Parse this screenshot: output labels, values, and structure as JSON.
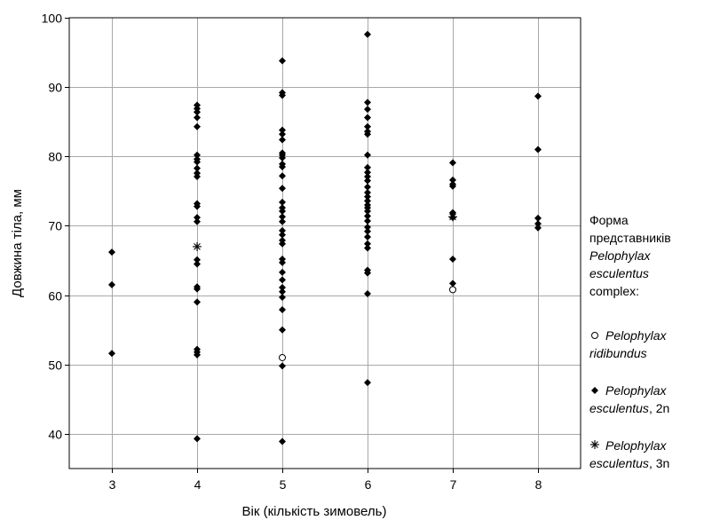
{
  "chart_data": {
    "type": "scatter",
    "title": "",
    "xlabel": "Вік (кількість зимовель)",
    "ylabel": "Довжина тіла, мм",
    "xlim": [
      2.5,
      8.5
    ],
    "ylim": [
      35,
      100
    ],
    "xticks": [
      3,
      4,
      5,
      6,
      7,
      8
    ],
    "yticks": [
      40,
      50,
      60,
      70,
      80,
      90,
      100
    ],
    "grid": true,
    "legend_position": "right",
    "legend_title": [
      "Форма",
      "представників",
      "Pelophylax",
      "esculentus",
      "complex:"
    ],
    "series": [
      {
        "name": "Pelophylax ridibundus",
        "name_italic": "Pelophylax",
        "name_rest": "ridibundus",
        "marker": "open-circle",
        "points": [
          [
            5,
            51.0
          ],
          [
            7,
            60.8
          ]
        ]
      },
      {
        "name": "Pelophylax esculentus, 2n",
        "name_italic": "Pelophylax",
        "name_rest": "esculentus, 2n",
        "marker": "filled-diamond",
        "points": [
          [
            3,
            66.2
          ],
          [
            3,
            61.5
          ],
          [
            3,
            51.6
          ],
          [
            4,
            87.4
          ],
          [
            4,
            86.9
          ],
          [
            4,
            86.4
          ],
          [
            4,
            85.6
          ],
          [
            4,
            84.3
          ],
          [
            4,
            80.2
          ],
          [
            4,
            79.6
          ],
          [
            4,
            79.2
          ],
          [
            4,
            78.3
          ],
          [
            4,
            77.6
          ],
          [
            4,
            77.1
          ],
          [
            4,
            73.2
          ],
          [
            4,
            72.8
          ],
          [
            4,
            71.2
          ],
          [
            4,
            70.6
          ],
          [
            4,
            65.1
          ],
          [
            4,
            64.5
          ],
          [
            4,
            61.2
          ],
          [
            4,
            60.9
          ],
          [
            4,
            59.0
          ],
          [
            4,
            52.2
          ],
          [
            4,
            51.8
          ],
          [
            4,
            51.4
          ],
          [
            4,
            39.3
          ],
          [
            5,
            93.8
          ],
          [
            5,
            89.2
          ],
          [
            5,
            88.8
          ],
          [
            5,
            83.8
          ],
          [
            5,
            83.2
          ],
          [
            5,
            82.4
          ],
          [
            5,
            80.5
          ],
          [
            5,
            80.2
          ],
          [
            5,
            79.8
          ],
          [
            5,
            78.9
          ],
          [
            5,
            78.5
          ],
          [
            5,
            77.2
          ],
          [
            5,
            75.4
          ],
          [
            5,
            73.4
          ],
          [
            5,
            72.6
          ],
          [
            5,
            72.1
          ],
          [
            5,
            71.3
          ],
          [
            5,
            70.6
          ],
          [
            5,
            69.3
          ],
          [
            5,
            68.7
          ],
          [
            5,
            67.9
          ],
          [
            5,
            67.4
          ],
          [
            5,
            65.2
          ],
          [
            5,
            64.7
          ],
          [
            5,
            63.3
          ],
          [
            5,
            62.2
          ],
          [
            5,
            61.1
          ],
          [
            5,
            60.5
          ],
          [
            5,
            59.7
          ],
          [
            5,
            57.9
          ],
          [
            5,
            55.0
          ],
          [
            5,
            49.8
          ],
          [
            5,
            38.9
          ],
          [
            6,
            97.6
          ],
          [
            6,
            87.8
          ],
          [
            6,
            86.8
          ],
          [
            6,
            85.6
          ],
          [
            6,
            84.3
          ],
          [
            6,
            83.6
          ],
          [
            6,
            83.2
          ],
          [
            6,
            80.2
          ],
          [
            6,
            78.4
          ],
          [
            6,
            77.7
          ],
          [
            6,
            77.1
          ],
          [
            6,
            76.5
          ],
          [
            6,
            75.6
          ],
          [
            6,
            74.8
          ],
          [
            6,
            74.2
          ],
          [
            6,
            73.6
          ],
          [
            6,
            73.0
          ],
          [
            6,
            72.6
          ],
          [
            6,
            72.1
          ],
          [
            6,
            71.4
          ],
          [
            6,
            70.7
          ],
          [
            6,
            69.8
          ],
          [
            6,
            69.2
          ],
          [
            6,
            68.4
          ],
          [
            6,
            67.4
          ],
          [
            6,
            66.8
          ],
          [
            6,
            63.6
          ],
          [
            6,
            63.2
          ],
          [
            6,
            60.2
          ],
          [
            6,
            47.4
          ],
          [
            7,
            79.1
          ],
          [
            7,
            76.6
          ],
          [
            7,
            76.0
          ],
          [
            7,
            75.7
          ],
          [
            7,
            71.9
          ],
          [
            7,
            71.2
          ],
          [
            7,
            65.2
          ],
          [
            7,
            61.7
          ],
          [
            8,
            88.7
          ],
          [
            8,
            81.0
          ],
          [
            8,
            71.1
          ],
          [
            8,
            70.3
          ],
          [
            8,
            69.7
          ]
        ]
      },
      {
        "name": "Pelophylax esculentus, 3n",
        "name_italic": "Pelophylax",
        "name_rest": "esculentus, 3n",
        "marker": "asterisk",
        "points": [
          [
            4,
            67.0
          ],
          [
            7,
            71.3
          ]
        ]
      }
    ]
  }
}
